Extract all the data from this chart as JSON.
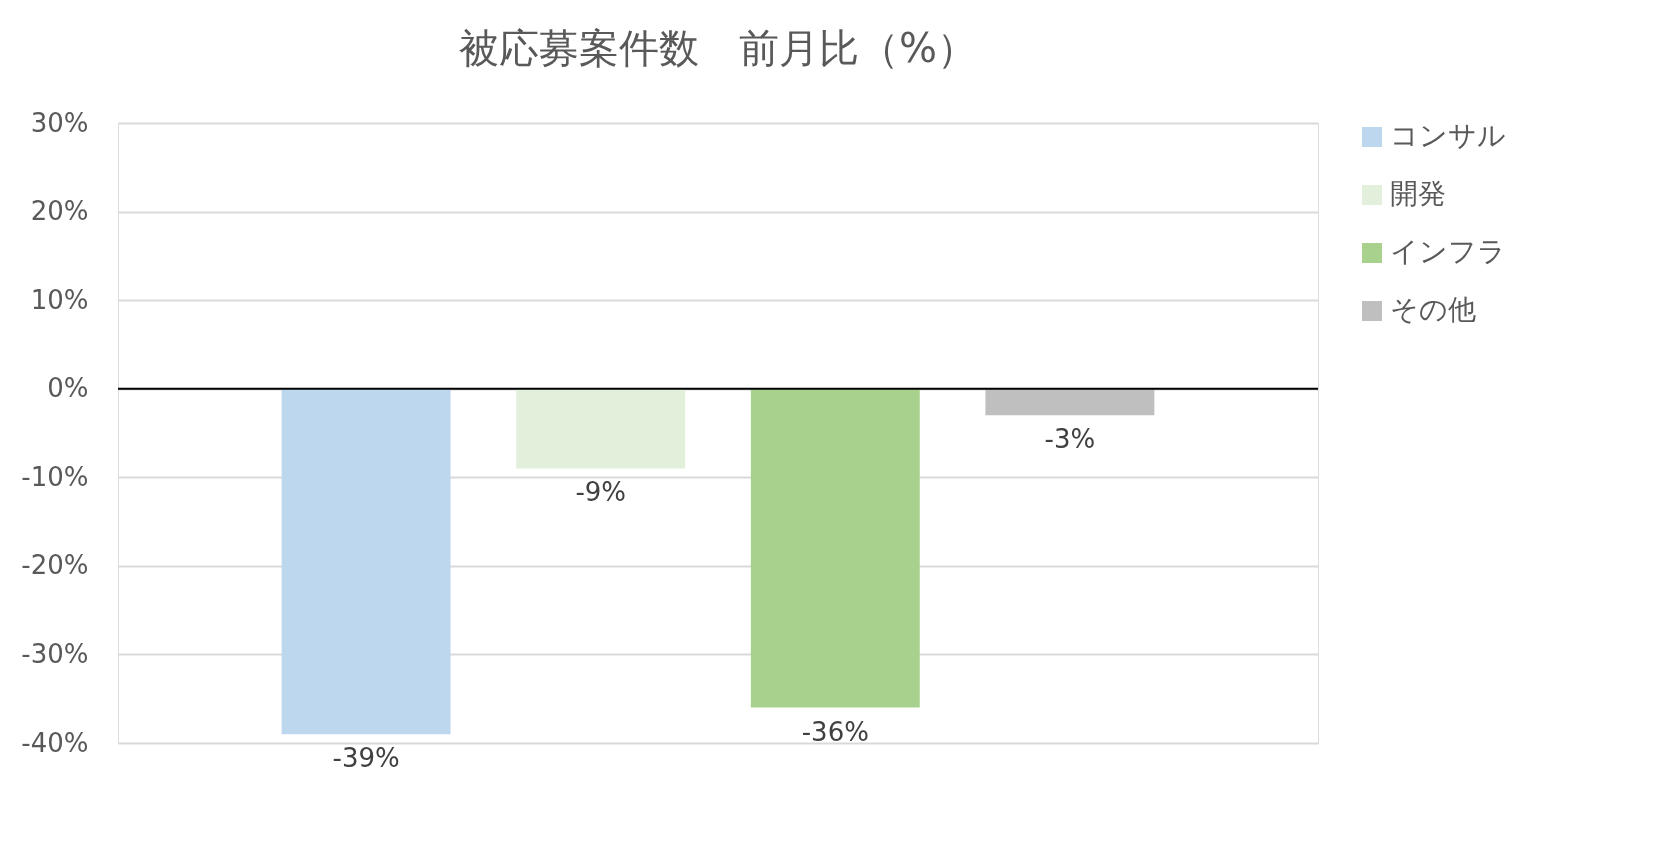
{
  "chart_data": {
    "type": "bar",
    "title": "被応募案件数　前月比（%）",
    "categories": [
      null
    ],
    "series": [
      {
        "name": "コンサル",
        "color": "#bdd7ee",
        "values": [
          -39
        ],
        "value_labels": [
          "-39%"
        ]
      },
      {
        "name": "開発",
        "color": "#e2efda",
        "values": [
          -9
        ],
        "value_labels": [
          "-9%"
        ]
      },
      {
        "name": "インフラ",
        "color": "#a9d18e",
        "values": [
          -36
        ],
        "value_labels": [
          "-36%"
        ]
      },
      {
        "name": "その他",
        "color": "#bfbfbf",
        "values": [
          -3
        ],
        "value_labels": [
          "-3%"
        ]
      }
    ],
    "ylim": [
      -40,
      30
    ],
    "yticks": [
      {
        "value": 30,
        "label": "30%"
      },
      {
        "value": 20,
        "label": "20%"
      },
      {
        "value": 10,
        "label": "10%"
      },
      {
        "value": 0,
        "label": "0%"
      },
      {
        "value": -10,
        "label": "-10%"
      },
      {
        "value": -20,
        "label": "-20%"
      },
      {
        "value": -30,
        "label": "-30%"
      },
      {
        "value": -40,
        "label": "-40%"
      }
    ],
    "grid": "y",
    "legend": "right",
    "tick_labels": "y"
  }
}
